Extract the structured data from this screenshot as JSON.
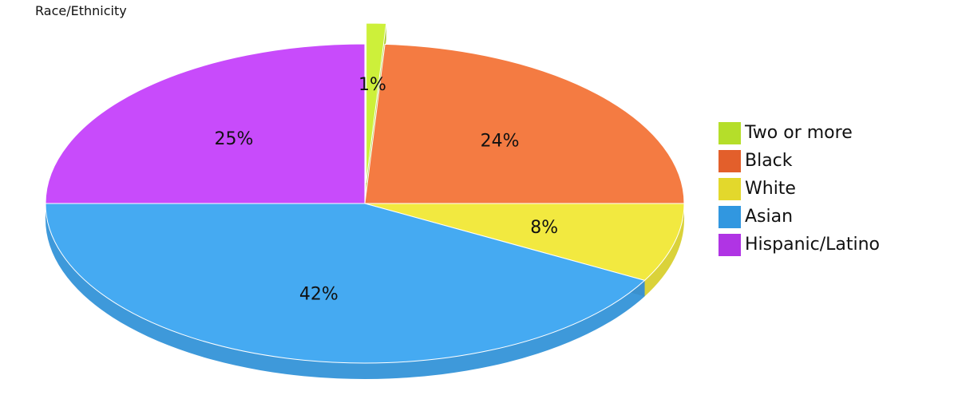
{
  "chart_data": {
    "type": "pie",
    "title": "Race/Ethnicity",
    "categories": [
      "Two or more",
      "Black",
      "White",
      "Asian",
      "Hispanic/Latino"
    ],
    "values": [
      1,
      24,
      8,
      42,
      25
    ],
    "value_labels": [
      "1%",
      "24%",
      "8%",
      "42%",
      "25%"
    ],
    "colors": [
      "#cdf03a",
      "#f47b42",
      "#f2e940",
      "#45aaf2",
      "#c84bfb"
    ],
    "legend_colors": [
      "#b5de2a",
      "#e35f2b",
      "#e3d82c",
      "#3197e0",
      "#b034e4"
    ],
    "exploded": [
      "Two or more"
    ],
    "legend_position": "right",
    "style": "3d"
  }
}
